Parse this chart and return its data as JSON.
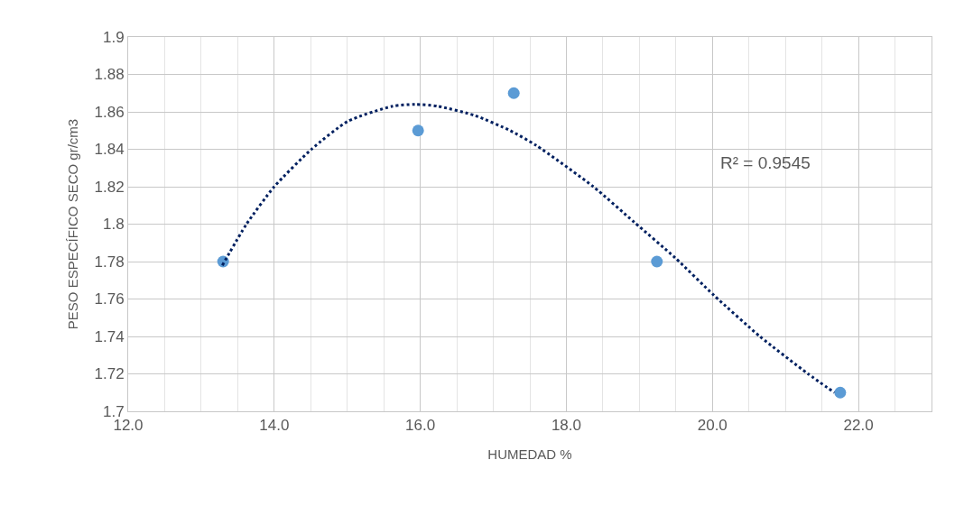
{
  "chart_data": {
    "type": "scatter",
    "xlabel": "HUMEDAD %",
    "ylabel": "PESO ESPECÍFICO SECO gr/cm3",
    "x": [
      13.3,
      15.97,
      17.28,
      19.24,
      21.75
    ],
    "series": [
      {
        "color": "#5b9bd5",
        "marker": "circle",
        "values": [
          1.78,
          1.85,
          1.87,
          1.78,
          1.71
        ]
      },
      {
        "type": "line",
        "color": "#002060",
        "line_style": "dotted",
        "marker": "none",
        "x": [
          13.29,
          13.62,
          14.0,
          14.51,
          15.01,
          15.62,
          15.93,
          16.24,
          16.75,
          17.23,
          17.59,
          18.37,
          18.93,
          19.49,
          20.02,
          20.65,
          21.31,
          21.67
        ],
        "values": [
          1.778,
          1.8,
          1.82,
          1.84,
          1.855,
          1.863,
          1.864,
          1.863,
          1.858,
          1.85,
          1.842,
          1.82,
          1.801,
          1.782,
          1.762,
          1.74,
          1.72,
          1.71
        ]
      }
    ],
    "annotations": [
      "R² = 0.9545"
    ],
    "xlim": [
      12,
      23
    ],
    "ylim": [
      1.7,
      1.9
    ],
    "xticks": [
      {
        "value": 12,
        "label": "12.0"
      },
      {
        "value": 14,
        "label": "14.0"
      },
      {
        "value": 16,
        "label": "16.0"
      },
      {
        "value": 18,
        "label": "18.0"
      },
      {
        "value": 20,
        "label": "20.0"
      },
      {
        "value": 22,
        "label": "22.0"
      }
    ],
    "yticks": [
      1.7,
      1.72,
      1.74,
      1.76,
      1.78,
      1.8,
      1.82,
      1.84,
      1.86,
      1.88,
      1.9
    ],
    "grid": true
  }
}
